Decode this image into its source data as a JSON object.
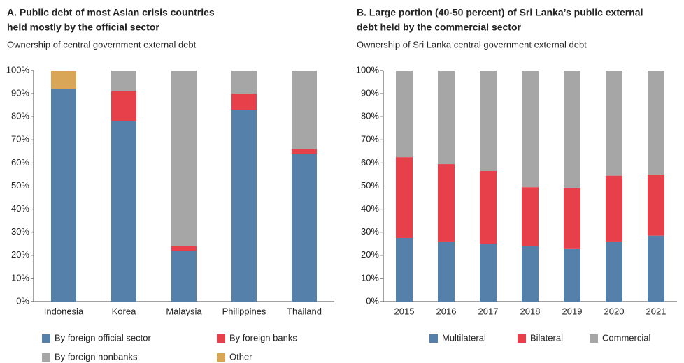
{
  "chart_data": [
    {
      "type": "bar",
      "stacked": true,
      "title": [
        "A. Public debt of most Asian crisis countries",
        "held mostly by the official sector"
      ],
      "subtitle": "Ownership of central government external debt",
      "categories": [
        "Indonesia",
        "Korea",
        "Malaysia",
        "Philippines",
        "Thailand"
      ],
      "series": [
        {
          "name": "By foreign official sector",
          "color": "#5580aa",
          "values": [
            92,
            78,
            22,
            83,
            64
          ]
        },
        {
          "name": "By foreign banks",
          "color": "#e8404a",
          "values": [
            0,
            13,
            2,
            7,
            2
          ]
        },
        {
          "name": "By foreign nonbanks",
          "color": "#a6a6a6",
          "values": [
            0,
            9,
            76,
            10,
            34
          ]
        },
        {
          "name": "Other",
          "color": "#d9a556",
          "values": [
            8,
            0,
            0,
            0,
            0
          ]
        }
      ],
      "ylim": [
        0,
        100
      ],
      "yticks": [
        {
          "value": 0,
          "label": "0%"
        },
        {
          "value": 10,
          "label": "10%"
        },
        {
          "value": 20,
          "label": "20%"
        },
        {
          "value": 30,
          "label": "30%"
        },
        {
          "value": 40,
          "label": "40%"
        },
        {
          "value": 50,
          "label": "50%"
        },
        {
          "value": 60,
          "label": "60%"
        },
        {
          "value": 70,
          "label": "70%"
        },
        {
          "value": 80,
          "label": "80%"
        },
        {
          "value": 90,
          "label": "90%"
        },
        {
          "value": 100,
          "label": "100%"
        }
      ]
    },
    {
      "type": "bar",
      "stacked": true,
      "title": [
        "B. Large portion (40-50 percent) of Sri Lanka’s public external",
        "debt held by the commercial sector"
      ],
      "subtitle": "Ownership of Sri Lanka central government external debt",
      "categories": [
        "2015",
        "2016",
        "2017",
        "2018",
        "2019",
        "2020",
        "2021"
      ],
      "series": [
        {
          "name": "Multilateral",
          "color": "#5580aa",
          "values": [
            27.5,
            26,
            25,
            24,
            23,
            26,
            28.5
          ]
        },
        {
          "name": "Bilateral",
          "color": "#e8404a",
          "values": [
            35,
            33.5,
            31.5,
            25.5,
            26,
            28.5,
            26.5
          ]
        },
        {
          "name": "Commercial",
          "color": "#a6a6a6",
          "values": [
            37.5,
            40.5,
            43.5,
            50.5,
            51,
            45.5,
            45
          ]
        }
      ],
      "ylim": [
        0,
        100
      ],
      "yticks": [
        {
          "value": 0,
          "label": "0%"
        },
        {
          "value": 10,
          "label": "10%"
        },
        {
          "value": 20,
          "label": "20%"
        },
        {
          "value": 30,
          "label": "30%"
        },
        {
          "value": 40,
          "label": "40%"
        },
        {
          "value": 50,
          "label": "50%"
        },
        {
          "value": 60,
          "label": "60%"
        },
        {
          "value": 70,
          "label": "70%"
        },
        {
          "value": 80,
          "label": "80%"
        },
        {
          "value": 90,
          "label": "90%"
        },
        {
          "value": 100,
          "label": "100%"
        }
      ]
    }
  ]
}
